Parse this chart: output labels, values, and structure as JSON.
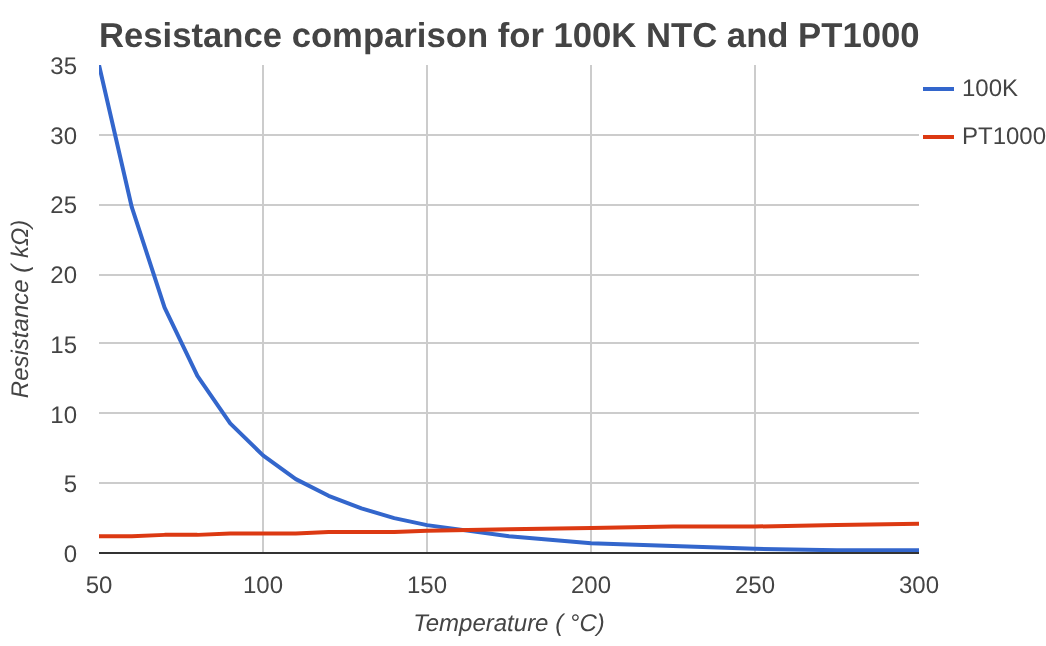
{
  "chart_data": {
    "type": "line",
    "title": "Resistance comparison for 100K NTC and PT1000",
    "xlabel": "Temperature ( °C)",
    "ylabel": "Resistance ( kΩ)",
    "x": [
      50,
      60,
      70,
      80,
      90,
      100,
      110,
      120,
      130,
      140,
      150,
      175,
      200,
      225,
      250,
      275,
      300
    ],
    "series": [
      {
        "name": "100K",
        "color": "#3366cc",
        "values": [
          35,
          24.8,
          17.6,
          12.7,
          9.3,
          7.0,
          5.3,
          4.1,
          3.2,
          2.5,
          2.0,
          1.2,
          0.7,
          0.5,
          0.3,
          0.2,
          0.2
        ]
      },
      {
        "name": "PT1000",
        "color": "#dc3912",
        "values": [
          1.2,
          1.2,
          1.3,
          1.3,
          1.4,
          1.4,
          1.4,
          1.5,
          1.5,
          1.5,
          1.6,
          1.7,
          1.8,
          1.9,
          1.9,
          2.0,
          2.1
        ]
      }
    ],
    "xlim": [
      50,
      300
    ],
    "ylim": [
      0,
      35
    ],
    "xticks": [
      50,
      100,
      150,
      200,
      250,
      300
    ],
    "yticks": [
      0,
      5,
      10,
      15,
      20,
      25,
      30,
      35
    ],
    "grid": true,
    "legend": "right"
  }
}
